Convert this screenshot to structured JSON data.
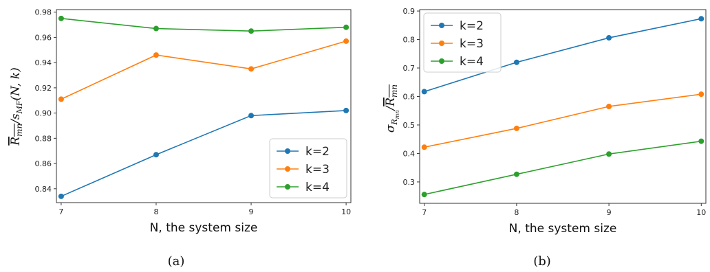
{
  "chart_data": [
    {
      "type": "line",
      "caption": "(a)",
      "xlabel": "N, the system size",
      "ylabel_main": "R",
      "ylabel_main_sub": "mn",
      "ylabel_rest": "/s",
      "ylabel_rest_sub": "MF",
      "ylabel_tail": "(N, k)",
      "x": [
        7,
        8,
        9,
        10
      ],
      "x_ticks": [
        "7",
        "8",
        "9",
        "10"
      ],
      "xlim": [
        6.95,
        10.05
      ],
      "ylim": [
        0.829,
        0.982
      ],
      "y_ticks": [
        "0.84",
        "0.86",
        "0.88",
        "0.90",
        "0.92",
        "0.94",
        "0.96",
        "0.98"
      ],
      "y_tick_values": [
        0.84,
        0.86,
        0.88,
        0.9,
        0.92,
        0.94,
        0.96,
        0.98
      ],
      "legend_position": "bottom-right",
      "series": [
        {
          "name": "k=2",
          "color": "#1f77b4",
          "values": [
            0.834,
            0.867,
            0.898,
            0.902
          ]
        },
        {
          "name": "k=3",
          "color": "#ff7f0e",
          "values": [
            0.911,
            0.946,
            0.935,
            0.957
          ]
        },
        {
          "name": "k=4",
          "color": "#2ca02c",
          "values": [
            0.975,
            0.967,
            0.965,
            0.968
          ]
        }
      ]
    },
    {
      "type": "line",
      "caption": "(b)",
      "xlabel": "N, the system size",
      "ylabel_sigma": "σ",
      "ylabel_sigma_sub": "R",
      "ylabel_sigma_subsub": "mn",
      "ylabel_rest": "/",
      "ylabel_main": "R",
      "ylabel_main_sub": "mn",
      "x": [
        7,
        8,
        9,
        10
      ],
      "x_ticks": [
        "7",
        "8",
        "9",
        "10"
      ],
      "xlim": [
        6.95,
        10.05
      ],
      "ylim": [
        0.225,
        0.905
      ],
      "y_ticks": [
        "0.3",
        "0.4",
        "0.5",
        "0.6",
        "0.7",
        "0.8",
        "0.9"
      ],
      "y_tick_values": [
        0.3,
        0.4,
        0.5,
        0.6,
        0.7,
        0.8,
        0.9
      ],
      "legend_position": "top-left",
      "series": [
        {
          "name": "k=2",
          "color": "#1f77b4",
          "values": [
            0.617,
            0.72,
            0.806,
            0.873
          ]
        },
        {
          "name": "k=3",
          "color": "#ff7f0e",
          "values": [
            0.422,
            0.488,
            0.565,
            0.608
          ]
        },
        {
          "name": "k=4",
          "color": "#2ca02c",
          "values": [
            0.256,
            0.327,
            0.398,
            0.443
          ]
        }
      ]
    }
  ]
}
